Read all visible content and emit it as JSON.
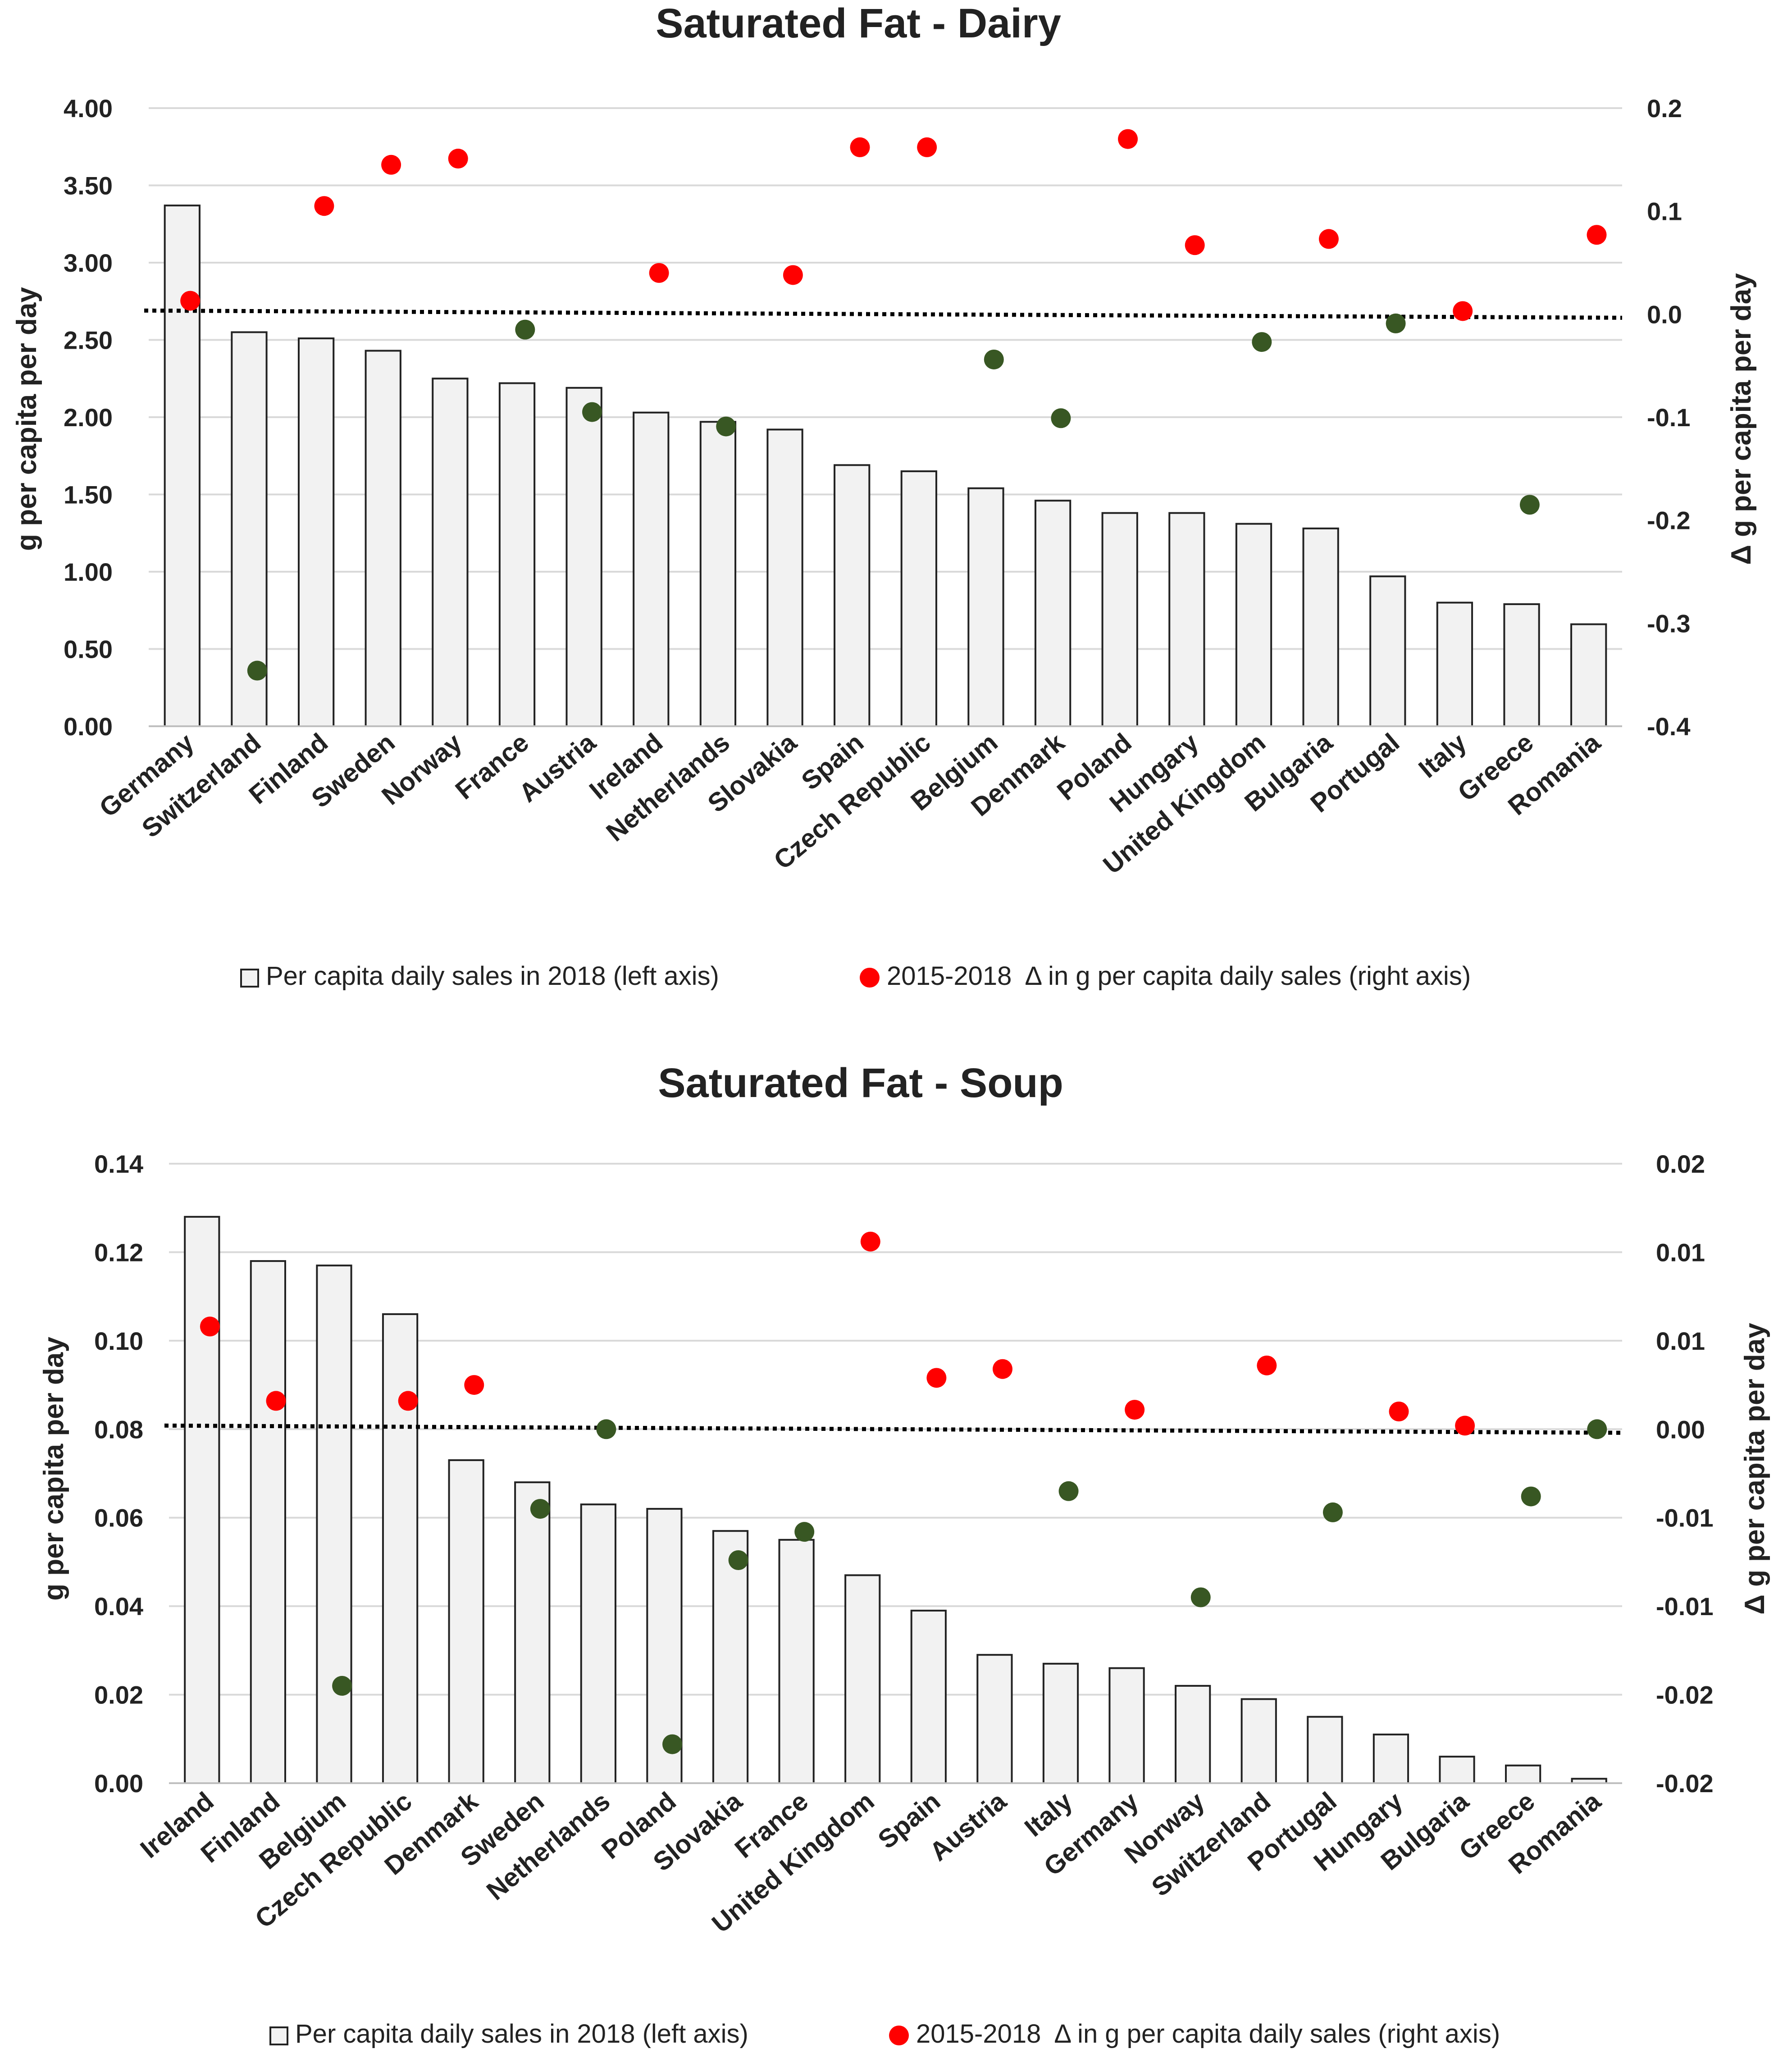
{
  "chart_data": [
    {
      "type": "bar",
      "title": "Saturated Fat - Dairy",
      "ylabel": "g per capita per day",
      "y2label": "Δ g per capita per day",
      "ylim": [
        0,
        4
      ],
      "y2lim": [
        -0.4,
        0.2
      ],
      "yticks": [
        "0.00",
        "0.50",
        "1.00",
        "1.50",
        "2.00",
        "2.50",
        "3.00",
        "3.50",
        "4.00"
      ],
      "y2ticks": [
        "-0.4",
        "-0.3",
        "-0.2",
        "-0.1",
        "0.0",
        "0.1",
        "0.2"
      ],
      "grid": true,
      "categories": [
        "Germany",
        "Switzerland",
        "Finland",
        "Sweden",
        "Norway",
        "France",
        "Austria",
        "Ireland",
        "Netherlands",
        "Slovakia",
        "Spain",
        "Czech Republic",
        "Belgium",
        "Denmark",
        "Poland",
        "Hungary",
        "United Kingdom",
        "Bulgaria",
        "Portugal",
        "Italy",
        "Greece",
        "Romania"
      ],
      "series": [
        {
          "name": "Per capita daily sales in 2018 (left axis)",
          "axis": "left",
          "kind": "bar",
          "values": [
            3.37,
            2.55,
            2.51,
            2.43,
            2.25,
            2.22,
            2.19,
            2.03,
            1.97,
            1.92,
            1.69,
            1.65,
            1.54,
            1.46,
            1.38,
            1.38,
            1.31,
            1.28,
            0.97,
            0.8,
            0.79,
            0.66
          ]
        },
        {
          "name": "2015-2018  Δ in g per capita daily sales (right axis)",
          "axis": "right",
          "kind": "scatter",
          "values": [
            0.013,
            -0.346,
            0.105,
            0.145,
            0.151,
            -0.015,
            -0.095,
            0.04,
            -0.109,
            0.038,
            0.162,
            0.162,
            -0.044,
            -0.101,
            0.17,
            0.067,
            -0.027,
            0.073,
            -0.009,
            0.003,
            -0.185,
            0.077
          ]
        }
      ],
      "marker_colors": {
        "positive": "#ff0000",
        "negative": "#385723"
      },
      "reference_line": {
        "axis": "right",
        "value": 0.0,
        "style": "dotted"
      },
      "legend_position": "bottom"
    },
    {
      "type": "bar",
      "title": "Saturated Fat - Soup",
      "ylabel": "g per capita per day",
      "y2label": "Δ g per capita per day",
      "ylim": [
        0,
        0.14
      ],
      "y2lim": [
        -0.02,
        0.015
      ],
      "yticks": [
        "0.00",
        "0.02",
        "0.04",
        "0.06",
        "0.08",
        "0.10",
        "0.12",
        "0.14"
      ],
      "y2ticks": [
        "-0.02",
        "-0.02",
        "-0.01",
        "-0.01",
        "0.00",
        "0.01",
        "0.01",
        "0.02"
      ],
      "grid": true,
      "categories": [
        "Ireland",
        "Finland",
        "Belgium",
        "Czech Republic",
        "Denmark",
        "Sweden",
        "Netherlands",
        "Poland",
        "Slovakia",
        "France",
        "United Kingdom",
        "Spain",
        "Austria",
        "Italy",
        "Germany",
        "Norway",
        "Switzerland",
        "Portugal",
        "Hungary",
        "Bulgaria",
        "Greece",
        "Romania"
      ],
      "series": [
        {
          "name": "Per capita daily sales in 2018 (left axis)",
          "axis": "left",
          "kind": "bar",
          "values": [
            0.128,
            0.118,
            0.117,
            0.106,
            0.073,
            0.068,
            0.063,
            0.062,
            0.057,
            0.055,
            0.047,
            0.039,
            0.029,
            0.027,
            0.026,
            0.022,
            0.019,
            0.015,
            0.011,
            0.006,
            0.004,
            0.001
          ]
        },
        {
          "name": "2015-2018  Δ in g per capita daily sales (right axis)",
          "axis": "right",
          "kind": "scatter",
          "values": [
            0.0058,
            0.0016,
            -0.0145,
            0.0016,
            0.0025,
            -0.0045,
            0.0,
            -0.0178,
            -0.0074,
            -0.0058,
            0.0106,
            0.0029,
            0.0034,
            -0.0035,
            0.0011,
            -0.0095,
            0.0036,
            -0.0047,
            0.001,
            0.0002,
            -0.0038,
            0.0
          ]
        }
      ],
      "marker_colors": {
        "positive": "#ff0000",
        "negative": "#385723"
      },
      "reference_line": {
        "axis": "right",
        "value": 0.0,
        "style": "dotted"
      },
      "legend_position": "bottom"
    }
  ]
}
